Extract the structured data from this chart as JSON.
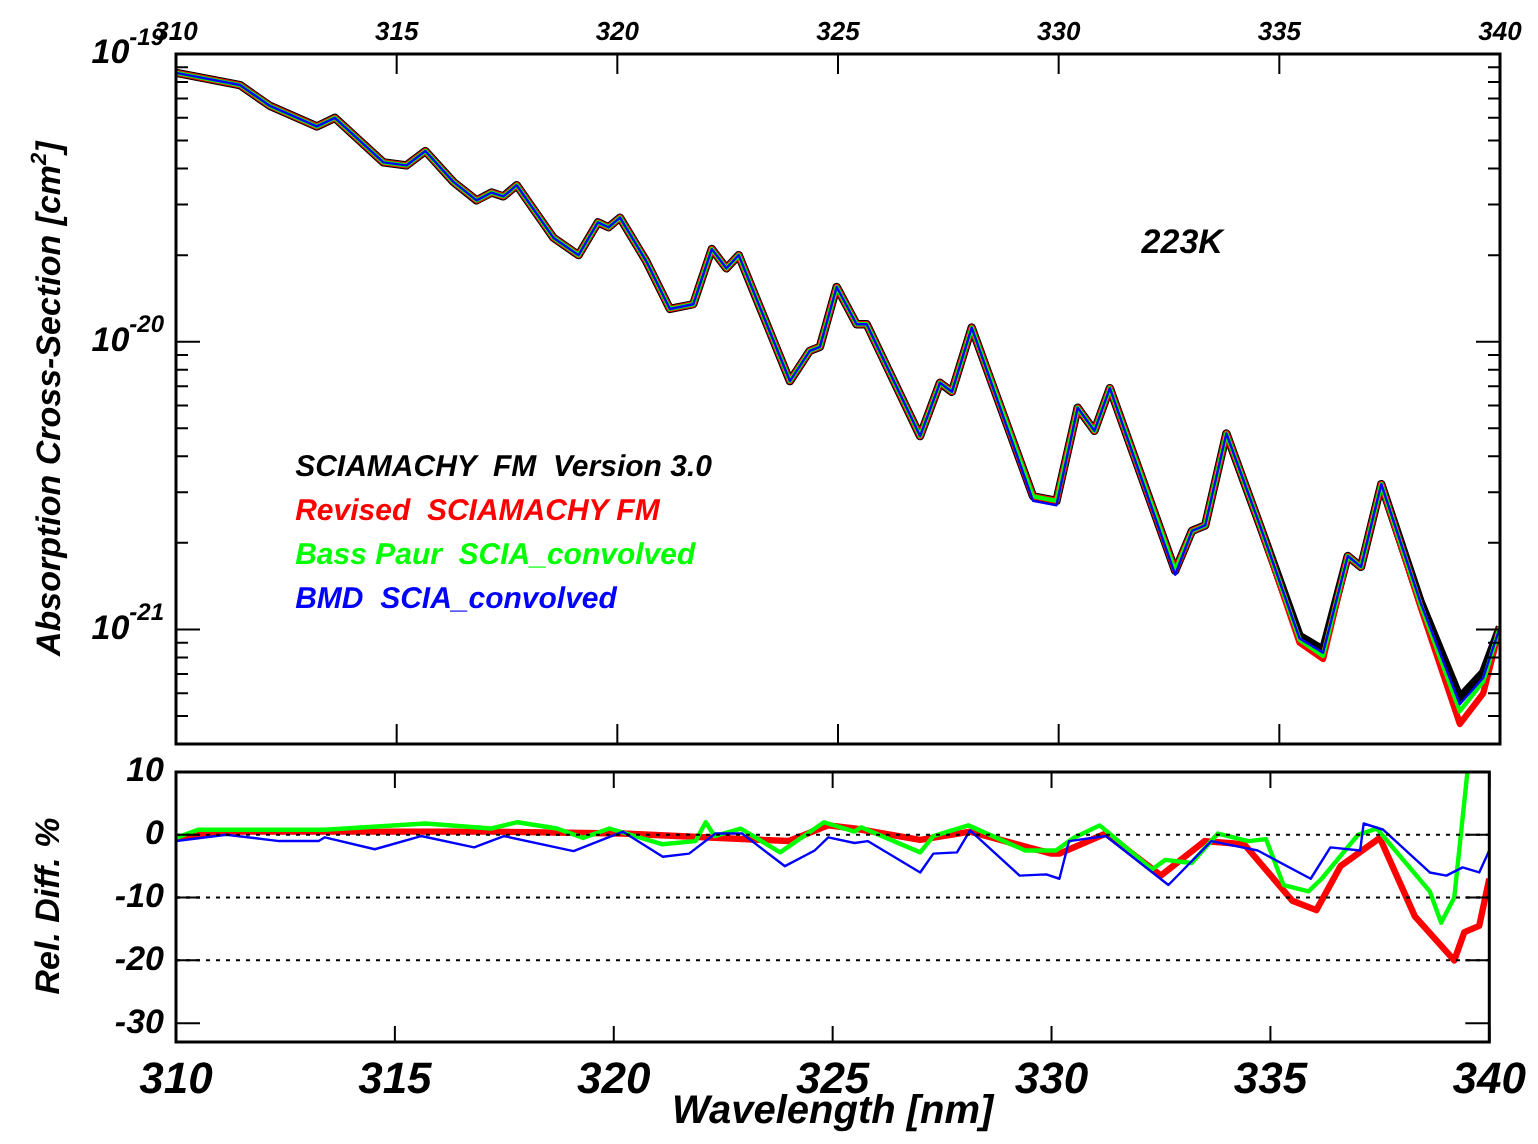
{
  "chart_data": [
    {
      "type": "line",
      "annotations": [
        "223K"
      ],
      "ylabel": "Absorption Cross-Section  [cm$^{2}$]",
      "log": "y",
      "legend": "left",
      "tick_labels": "y",
      "xlim": [
        310,
        340
      ],
      "x2lim": [
        310,
        340
      ],
      "x2ticks": [
        310,
        315,
        320,
        325,
        330,
        335,
        340
      ],
      "ylim": [
        4e-22,
        1e-19
      ],
      "yticks": [
        {
          "value": 1e-19,
          "label": "10$^{-19}$"
        },
        {
          "value": 9e-20,
          "label": null
        },
        {
          "value": 8e-20,
          "label": null
        },
        {
          "value": 7e-20,
          "label": null
        },
        {
          "value": 6e-20,
          "label": null
        },
        {
          "value": 5e-20,
          "label": null
        },
        {
          "value": 4e-20,
          "label": null
        },
        {
          "value": 3e-20,
          "label": null
        },
        {
          "value": 2e-20,
          "label": null
        },
        {
          "value": 1e-20,
          "label": "10$^{-20}$"
        },
        {
          "value": 9e-21,
          "label": null
        },
        {
          "value": 8e-21,
          "label": null
        },
        {
          "value": 7e-21,
          "label": null
        },
        {
          "value": 6e-21,
          "label": null
        },
        {
          "value": 5e-21,
          "label": null
        },
        {
          "value": 4e-21,
          "label": null
        },
        {
          "value": 3e-21,
          "label": null
        },
        {
          "value": 2e-21,
          "label": null
        },
        {
          "value": 1e-21,
          "label": "10$^{-21}$"
        },
        {
          "value": 9e-22,
          "label": null
        },
        {
          "value": 8e-22,
          "label": null
        },
        {
          "value": 7e-22,
          "label": null
        },
        {
          "value": 6e-22,
          "label": null
        },
        {
          "value": 5e-22,
          "label": null
        }
      ],
      "x": [
        310,
        311.45,
        312.13,
        313.19,
        313.6,
        314.7,
        315.22,
        315.65,
        316.28,
        316.81,
        317.15,
        317.42,
        317.72,
        318.55,
        319.12,
        319.56,
        319.8,
        320.06,
        320.66,
        321.19,
        321.72,
        322.14,
        322.47,
        322.75,
        323.91,
        324.36,
        324.59,
        324.97,
        325.42,
        325.65,
        326.86,
        327.31,
        327.58,
        328.03,
        329.42,
        329.95,
        330.43,
        330.81,
        331.16,
        332.64,
        333.02,
        333.32,
        333.8,
        334.56,
        335.46,
        335.99,
        336.55,
        336.85,
        337.31,
        338.2,
        339.09,
        339.62,
        340
      ],
      "series": [
        {
          "name": "SCIAMACHY  FM  Version 3.0",
          "color": "#000000",
          "values": [
            8.6e-20,
            7.8e-20,
            6.6e-20,
            5.6e-20,
            6e-20,
            4.2e-20,
            4.1e-20,
            4.6e-20,
            3.6e-20,
            3.1e-20,
            3.3e-20,
            3.2e-20,
            3.5e-20,
            2.3e-20,
            2e-20,
            2.6e-20,
            2.5e-20,
            2.7e-20,
            1.9e-20,
            1.3e-20,
            1.35e-20,
            2.1e-20,
            1.8e-20,
            2e-20,
            7.3e-21,
            9.3e-21,
            9.6e-21,
            1.55e-20,
            1.15e-20,
            1.15e-20,
            4.7e-21,
            7.2e-21,
            6.7e-21,
            1.12e-20,
            2.9e-21,
            2.8e-21,
            5.9e-21,
            4.9e-21,
            6.9e-21,
            1.6e-21,
            2.2e-21,
            2.3e-21,
            4.8e-21,
            2.3e-21,
            9.5e-22,
            8.5e-22,
            1.8e-21,
            1.65e-21,
            3.2e-21,
            1.25e-21,
            5.8e-22,
            7.1e-22,
            1.02e-21
          ]
        },
        {
          "name": "Revised  SCIAMACHY FM",
          "color": "#ff0000",
          "values": [
            8.6e-20,
            7.8e-20,
            6.6e-20,
            5.6e-20,
            6e-20,
            4.2e-20,
            4.1e-20,
            4.6e-20,
            3.6e-20,
            3.1e-20,
            3.3e-20,
            3.2e-20,
            3.5e-20,
            2.3e-20,
            2e-20,
            2.6e-20,
            2.5e-20,
            2.7e-20,
            1.9e-20,
            1.3e-20,
            1.35e-20,
            2.1e-20,
            1.8e-20,
            2e-20,
            7.3e-21,
            9.3e-21,
            9.6e-21,
            1.55e-20,
            1.15e-20,
            1.15e-20,
            4.7e-21,
            7.2e-21,
            6.7e-21,
            1.12e-20,
            2.9e-21,
            2.8e-21,
            5.9e-21,
            4.9e-21,
            6.9e-21,
            1.6e-21,
            2.2e-21,
            2.3e-21,
            4.8e-21,
            2.3e-21,
            9e-22,
            7.9e-22,
            1.8e-21,
            1.65e-21,
            3.2e-21,
            1.2e-21,
            4.7e-22,
            6e-22,
            1.02e-21
          ]
        },
        {
          "name": "Bass Paur  SCIA_convolved",
          "color": "#00ff00",
          "values": [
            8.6e-20,
            7.8e-20,
            6.6e-20,
            5.6e-20,
            6e-20,
            4.2e-20,
            4.1e-20,
            4.6e-20,
            3.6e-20,
            3.1e-20,
            3.3e-20,
            3.2e-20,
            3.5e-20,
            2.3e-20,
            2e-20,
            2.6e-20,
            2.5e-20,
            2.7e-20,
            1.9e-20,
            1.3e-20,
            1.35e-20,
            2.1e-20,
            1.8e-20,
            2e-20,
            7.3e-21,
            9.3e-21,
            9.6e-21,
            1.55e-20,
            1.15e-20,
            1.15e-20,
            4.7e-21,
            7.2e-21,
            6.7e-21,
            1.12e-20,
            2.9e-21,
            2.8e-21,
            5.9e-21,
            4.9e-21,
            6.9e-21,
            1.6e-21,
            2.2e-21,
            2.3e-21,
            4.8e-21,
            2.3e-21,
            9.2e-22,
            8.1e-22,
            1.8e-21,
            1.65e-21,
            3.2e-21,
            1.22e-21,
            5.2e-22,
            6.6e-22,
            1.02e-21
          ]
        },
        {
          "name": "BMD  SCIA_convolved",
          "color": "#0000ff",
          "values": [
            8.6e-20,
            7.8e-20,
            6.6e-20,
            5.6e-20,
            6e-20,
            4.2e-20,
            4.1e-20,
            4.6e-20,
            3.6e-20,
            3.1e-20,
            3.3e-20,
            3.2e-20,
            3.5e-20,
            2.3e-20,
            2e-20,
            2.6e-20,
            2.5e-20,
            2.7e-20,
            1.9e-20,
            1.3e-20,
            1.35e-20,
            2.1e-20,
            1.8e-20,
            2e-20,
            7.3e-21,
            9.3e-21,
            9.6e-21,
            1.55e-20,
            1.15e-20,
            1.15e-20,
            4.7e-21,
            7.2e-21,
            6.7e-21,
            1.12e-20,
            2.8e-21,
            2.7e-21,
            5.9e-21,
            4.9e-21,
            6.9e-21,
            1.55e-21,
            2.2e-21,
            2.3e-21,
            4.8e-21,
            2.3e-21,
            9.3e-22,
            8.3e-22,
            1.8e-21,
            1.65e-21,
            3.2e-21,
            1.24e-21,
            5.5e-22,
            6.8e-22,
            1.02e-21
          ]
        }
      ]
    },
    {
      "type": "line",
      "xlabel": "Wavelength [nm]",
      "ylabel": "Rel. Diff.  %",
      "grid": false,
      "xlim": [
        310,
        340
      ],
      "xticks": [
        310,
        315,
        320,
        325,
        330,
        335,
        340
      ],
      "ylim": [
        -33,
        10
      ],
      "yticks": [
        10,
        0,
        -10,
        -20,
        -30
      ],
      "ref_lines": [
        {
          "axis": "y",
          "value": 0,
          "line_style": "dotted"
        },
        {
          "axis": "y",
          "value": -10,
          "line_style": "dotted"
        },
        {
          "axis": "y",
          "value": -20,
          "line_style": "dotted"
        }
      ],
      "series": [
        {
          "color": "#ff0000",
          "x": [
            310,
            311.15,
            317.2,
            320.2,
            324,
            324.9,
            325.5,
            327,
            328.14,
            330,
            330.18,
            331.24,
            332.5,
            333.5,
            334.4,
            335.5,
            336.05,
            336.6,
            337.5,
            338.3,
            339.2,
            339.43,
            339.77,
            340
          ],
          "values": [
            -0.5,
            0.5,
            0.5,
            0.2,
            -1,
            1.5,
            1,
            -0.8,
            0.5,
            -3,
            -3,
            0.2,
            -6.5,
            -1,
            -1.5,
            -10.5,
            -12,
            -5,
            -0.5,
            -13,
            -20,
            -15.5,
            -14.5,
            -7
          ]
        },
        {
          "color": "#00ff00",
          "x": [
            310,
            310.5,
            313.4,
            315.7,
            317.2,
            317.8,
            318.7,
            319.3,
            319.9,
            321.1,
            321.87,
            322.1,
            322.3,
            322.9,
            323.8,
            324.8,
            325.5,
            325.65,
            327,
            327.3,
            328.1,
            329.4,
            330.1,
            330.5,
            331.1,
            332.3,
            332.6,
            333.2,
            333.8,
            334.5,
            334.9,
            335.3,
            335.87,
            336.17,
            337,
            337.43,
            338.64,
            338.9,
            339.2,
            339.5
          ],
          "values": [
            -0.5,
            0.8,
            0.8,
            1.8,
            1,
            2,
            1,
            -0.5,
            1,
            -1.5,
            -1,
            2,
            -0.2,
            1,
            -2.8,
            2,
            0.5,
            1.2,
            -2.8,
            -0.2,
            1.5,
            -2.5,
            -2.5,
            -0.5,
            1.5,
            -5.5,
            -4,
            -4.5,
            0.2,
            -1,
            -0.7,
            -8,
            -9,
            -7,
            0,
            1,
            -9,
            -14,
            -10,
            10
          ]
        },
        {
          "color": "#0000ff",
          "x": [
            310,
            311.15,
            312.36,
            313.26,
            313.4,
            314.54,
            315.6,
            316.81,
            317.49,
            319.08,
            320.21,
            321.12,
            321.72,
            322.32,
            322.93,
            323.91,
            324.59,
            324.9,
            325.5,
            325.8,
            327,
            327.3,
            327.84,
            328.14,
            329.27,
            329.88,
            330.18,
            330.4,
            331.24,
            332.67,
            333.65,
            334.71,
            335.92,
            336.37,
            337.05,
            337.13,
            337.58,
            338.64,
            339.02,
            339.39,
            339.77,
            340
          ],
          "values": [
            -1,
            0,
            -1,
            -1,
            -0.4,
            -2.3,
            -0.2,
            -2,
            -0.2,
            -2.6,
            0.5,
            -3.5,
            -3,
            0.2,
            0.2,
            -5,
            -2.5,
            -0.4,
            -1.3,
            -1,
            -6,
            -3,
            -2.8,
            0.7,
            -6.5,
            -6.3,
            -7,
            -1,
            -0.2,
            -8,
            -1,
            -2.5,
            -7,
            -2,
            -2.5,
            1.8,
            0.8,
            -6,
            -6.5,
            -5.2,
            -6,
            -2.5
          ]
        }
      ]
    }
  ]
}
